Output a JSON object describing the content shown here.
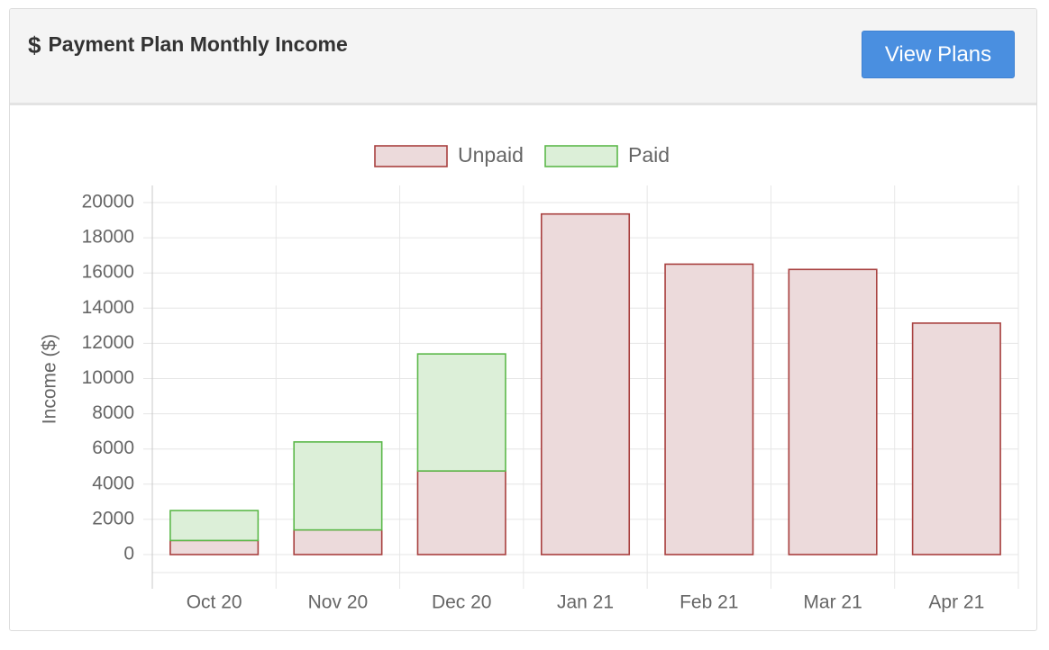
{
  "header": {
    "icon": "dollar-icon",
    "title": "Payment Plan Monthly Income",
    "button_label": "View Plans"
  },
  "colors": {
    "unpaid_fill": "#ecdadb",
    "unpaid_border": "#a8403f",
    "paid_fill": "#dcefd8",
    "paid_border": "#5cb84a",
    "button": "#4a8fe0",
    "grid": "#e6e6e6",
    "text": "#666666"
  },
  "chart_data": {
    "type": "bar",
    "stacked": true,
    "categories": [
      "Oct 20",
      "Nov 20",
      "Dec 20",
      "Jan 21",
      "Feb 21",
      "Mar 21",
      "Apr 21"
    ],
    "series": [
      {
        "name": "Unpaid",
        "values": [
          800,
          1400,
          4750,
          19350,
          16500,
          16200,
          13150
        ]
      },
      {
        "name": "Paid",
        "values": [
          1700,
          5000,
          6650,
          0,
          0,
          0,
          0
        ]
      }
    ],
    "ylabel": "Income ($)",
    "xlabel": "",
    "ylim": [
      0,
      20000
    ],
    "yticks": [
      "0",
      "2000",
      "4000",
      "6000",
      "8000",
      "10000",
      "12000",
      "14000",
      "16000",
      "18000",
      "20000"
    ],
    "legend_position": "top",
    "grid": true
  }
}
